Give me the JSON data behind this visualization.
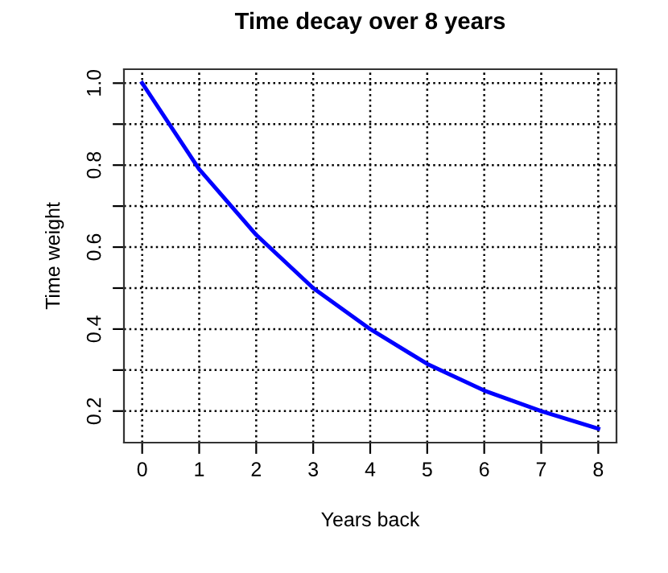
{
  "chart_data": {
    "type": "line",
    "title": "Time decay over 8 years",
    "xlabel": "Years back",
    "ylabel": "Time weight",
    "x": [
      0,
      1,
      2,
      3,
      4,
      5,
      6,
      7,
      8
    ],
    "series": [
      {
        "color": "#0000ff",
        "values": [
          1.0,
          0.79,
          0.63,
          0.5,
          0.4,
          0.315,
          0.25,
          0.2,
          0.157
        ]
      }
    ],
    "xlim": [
      -0.32,
      8.32
    ],
    "ylim": [
      0.123,
      1.034
    ],
    "xticks": [
      0,
      1,
      2,
      3,
      4,
      5,
      6,
      7,
      8
    ],
    "yticks": [
      0.2,
      {
        "value": 0.3,
        "label": null
      },
      0.4,
      {
        "value": 0.5,
        "label": null
      },
      0.6,
      {
        "value": 0.7,
        "label": null
      },
      0.8,
      {
        "value": 0.9,
        "label": null
      },
      {
        "value": 1.0,
        "label": "1.0"
      }
    ],
    "grid": true,
    "line_style": "solid",
    "marker": "none",
    "legend": false
  }
}
